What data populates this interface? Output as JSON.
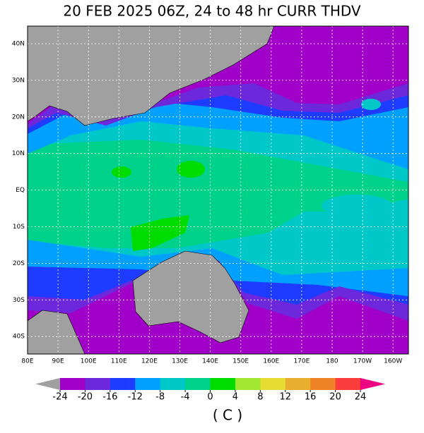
{
  "title": "20 FEB 2025 06Z,   24 to  48 hr CURR THDV",
  "lat_labels": [
    "40N",
    "30N",
    "20N",
    "10N",
    "EQ",
    "10S",
    "20S",
    "30S",
    "40S"
  ],
  "lon_labels": [
    "80E",
    "90E",
    "100E",
    "110E",
    "120E",
    "130E",
    "140E",
    "150E",
    "160E",
    "170E",
    "180",
    "170W",
    "160W"
  ],
  "colorbar": {
    "labels": [
      "-24",
      "-20",
      "-16",
      "-12",
      "-8",
      "-4",
      "0",
      "4",
      "8",
      "12",
      "16",
      "20",
      "24"
    ],
    "colors": [
      "#a000c8",
      "#6e28dc",
      "#1e3cff",
      "#00a0ff",
      "#00c8c8",
      "#00d28c",
      "#00dc00",
      "#a0e632",
      "#e6dc32",
      "#e6af2d",
      "#f08228",
      "#fa3c3c"
    ],
    "under_color": "#a0a0a0",
    "over_color": "#f00082"
  },
  "unit": "( C )"
}
